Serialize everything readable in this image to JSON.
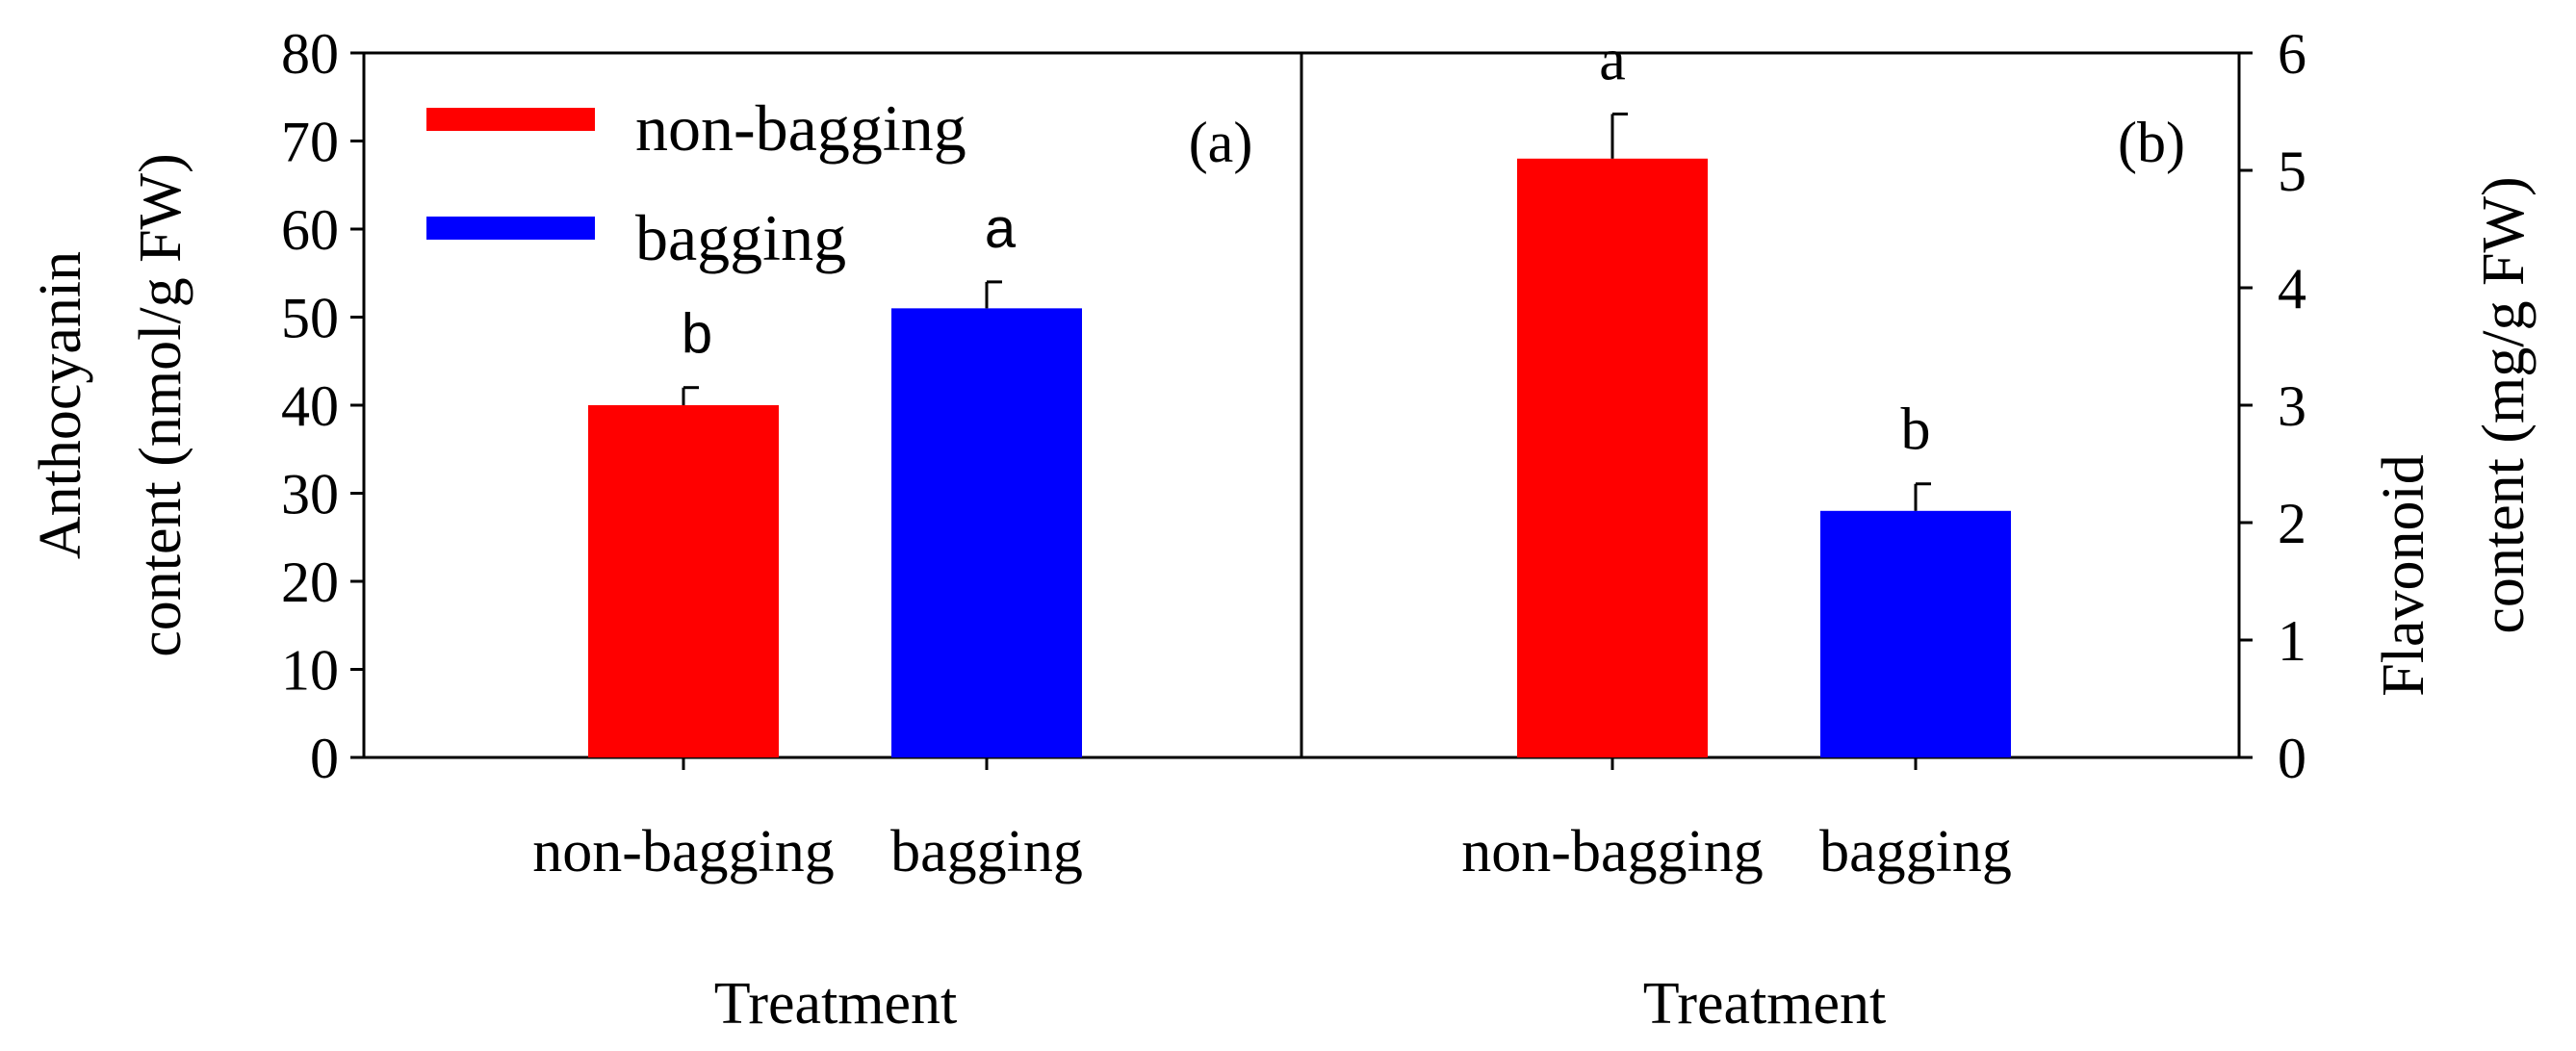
{
  "colors": {
    "non_bagging": "#ff0000",
    "bagging": "#0000ff",
    "axis": "#000000"
  },
  "chart_data": [
    {
      "type": "bar",
      "panel_label": "(a)",
      "categories": [
        "non-bagging",
        "bagging"
      ],
      "series": [
        {
          "name": "non-bagging",
          "color": "#ff0000",
          "values": [
            40,
            null
          ],
          "errors": [
            2,
            null
          ],
          "letters": [
            "b",
            null
          ]
        },
        {
          "name": "bagging",
          "color": "#0000ff",
          "values": [
            null,
            51
          ],
          "errors": [
            null,
            3
          ],
          "letters": [
            null,
            "a"
          ]
        }
      ],
      "xlabel": "Treatment",
      "ylabel_line1": "Anthocyanin",
      "ylabel_line2": "content (nmol/g FW)",
      "ylim": [
        0,
        80
      ],
      "yticks": [
        0,
        10,
        20,
        30,
        40,
        50,
        60,
        70,
        80
      ],
      "ytick_labels": [
        "0",
        "10",
        "20",
        "30",
        "40",
        "50",
        "60",
        "70",
        "80"
      ],
      "legend": {
        "position": "top-left",
        "entries": [
          {
            "label": "non-bagging",
            "color": "#ff0000"
          },
          {
            "label": "bagging",
            "color": "#0000ff"
          }
        ]
      },
      "grid": false
    },
    {
      "type": "bar",
      "panel_label": "(b)",
      "categories": [
        "non-bagging",
        "bagging"
      ],
      "series": [
        {
          "name": "non-bagging",
          "color": "#ff0000",
          "values": [
            5.1,
            null
          ],
          "errors": [
            0.38,
            null
          ],
          "letters": [
            "a",
            null
          ]
        },
        {
          "name": "bagging",
          "color": "#0000ff",
          "values": [
            null,
            2.1
          ],
          "errors": [
            null,
            0.23
          ],
          "letters": [
            null,
            "b"
          ]
        }
      ],
      "xlabel": "Treatment",
      "ylabel_line1": "Flavonoid",
      "ylabel_line2": "content (mg/g FW)",
      "ylim": [
        0,
        6
      ],
      "yticks": [
        0,
        1,
        2,
        3,
        4,
        5,
        6
      ],
      "ytick_labels": [
        "0",
        "1",
        "2",
        "3",
        "4",
        "5",
        "6"
      ],
      "y_axis_side": "right",
      "grid": false
    }
  ]
}
